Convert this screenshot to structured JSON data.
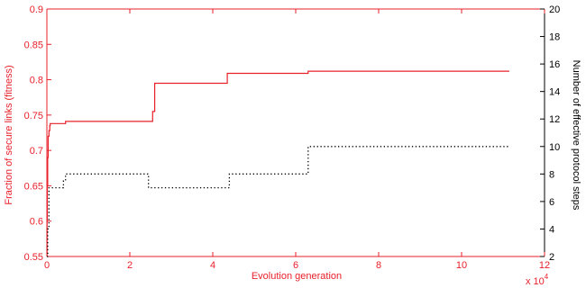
{
  "chart_data": {
    "type": "line",
    "title": "",
    "xlabel": "Evolution generation",
    "x_multiplier_label": "x 10",
    "x_multiplier_exp": "4",
    "ylabel_left": "Fraction of secure links (fitness)",
    "ylabel_right": "Number of effective protocol steps",
    "xlim": [
      0,
      12
    ],
    "ylim_left": [
      0.55,
      0.9
    ],
    "ylim_right": [
      2,
      20
    ],
    "x_ticks": [
      "0",
      "2",
      "4",
      "6",
      "8",
      "10",
      "12"
    ],
    "y_left_ticks": [
      "0.55",
      "0.6",
      "0.65",
      "0.7",
      "0.75",
      "0.8",
      "0.85",
      "0.9"
    ],
    "y_right_ticks": [
      "2",
      "4",
      "6",
      "8",
      "10",
      "12",
      "14",
      "16",
      "18",
      "20"
    ],
    "grid": false,
    "colors": {
      "fitness": "#e8202a",
      "steps": "#000000",
      "left_axis": "#e8202a",
      "right_axis": "#000000"
    },
    "series": [
      {
        "axis": "left",
        "style": "solid",
        "x": [
          0,
          0.005,
          0.01,
          0.02,
          0.03,
          0.05,
          0.07,
          0.08,
          0.4,
          0.45,
          2.45,
          2.55,
          2.55,
          2.6,
          4.35,
          6.3,
          11.15
        ],
        "y": [
          0.55,
          0.6,
          0.65,
          0.69,
          0.72,
          0.728,
          0.735,
          0.738,
          0.738,
          0.741,
          0.741,
          0.755,
          0.755,
          0.795,
          0.809,
          0.812,
          0.812
        ]
      },
      {
        "axis": "right",
        "style": "dotted",
        "x": [
          0,
          0.02,
          0.05,
          0.3,
          0.4,
          0.45,
          2.4,
          2.45,
          4.35,
          4.4,
          6.25,
          6.3,
          11.15
        ],
        "y": [
          2,
          4,
          7,
          7,
          7.5,
          8,
          8,
          7,
          7,
          8,
          8,
          10,
          10
        ]
      }
    ]
  }
}
